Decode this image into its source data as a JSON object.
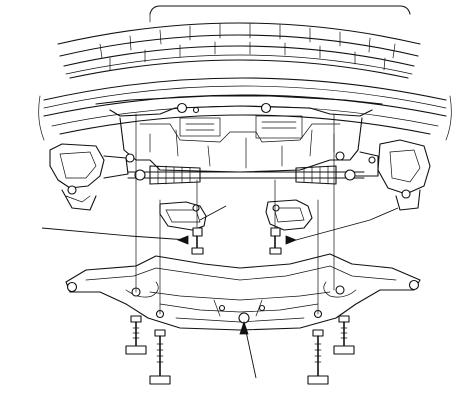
{
  "diagram": {
    "kind": "exploded-view",
    "background": "#ffffff",
    "line_color": "#111111",
    "parts": [
      {
        "id": "radiator-grille-upper",
        "icon": "grille-slats"
      },
      {
        "id": "front-bumper-lower",
        "icon": "bumper-curve"
      },
      {
        "id": "engine-compartment",
        "icon": "engine-block"
      },
      {
        "id": "left-brake-assembly",
        "icon": "brake-caliper"
      },
      {
        "id": "right-brake-assembly",
        "icon": "brake-caliper"
      },
      {
        "id": "steering-rack",
        "icon": "rack-and-boot"
      },
      {
        "id": "left-mount-bracket",
        "icon": "bracket"
      },
      {
        "id": "right-mount-bracket",
        "icon": "bracket"
      },
      {
        "id": "front-subframe",
        "icon": "crossmember"
      },
      {
        "id": "subframe-bolts",
        "icon": "bolt",
        "count": 4
      },
      {
        "id": "bracket-bolts",
        "icon": "bolt",
        "count": 2
      }
    ],
    "callouts": 5
  }
}
